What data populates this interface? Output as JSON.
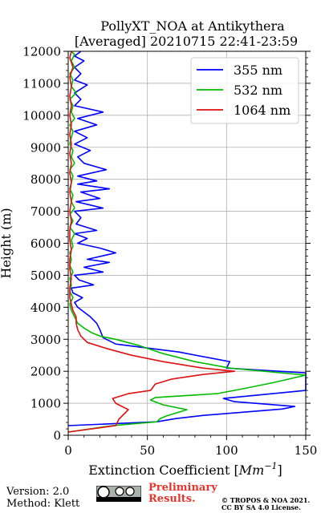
{
  "chart_data": {
    "type": "line",
    "title": "PollyXT_NOA at Antikythera",
    "subtitle": "[Averaged] 20210715 22:41-23:59",
    "xlabel": "Extinction Coefficient [",
    "xlabel_unit": "Mm",
    "xlabel_exp": "−1",
    "xlabel_end": "]",
    "ylabel": "Height (m)",
    "xlim": [
      0,
      150
    ],
    "ylim": [
      0,
      12000
    ],
    "x_ticks": [
      0,
      50,
      100,
      150
    ],
    "y_ticks": [
      0,
      1000,
      2000,
      3000,
      4000,
      5000,
      6000,
      7000,
      8000,
      9000,
      10000,
      11000,
      12000
    ],
    "grid": true,
    "legend_position": "top-right",
    "series": [
      {
        "name": "355 nm",
        "color": "#0000ff",
        "points": [
          [
            0,
            300
          ],
          [
            56,
            420
          ],
          [
            68,
            520
          ],
          [
            85,
            620
          ],
          [
            110,
            720
          ],
          [
            135,
            820
          ],
          [
            143,
            900
          ],
          [
            105,
            1050
          ],
          [
            98,
            1150
          ],
          [
            150,
            1400
          ],
          [
            150,
            1950
          ],
          [
            100,
            2100
          ],
          [
            102,
            2300
          ],
          [
            70,
            2600
          ],
          [
            30,
            2850
          ],
          [
            22,
            3050
          ],
          [
            20,
            3300
          ],
          [
            18,
            3500
          ],
          [
            14,
            3700
          ],
          [
            10,
            3850
          ],
          [
            6,
            4000
          ],
          [
            4,
            4150
          ],
          [
            9,
            4300
          ],
          [
            3,
            4450
          ],
          [
            2,
            4600
          ],
          [
            16,
            4700
          ],
          [
            7,
            4850
          ],
          [
            4,
            5000
          ],
          [
            22,
            5100
          ],
          [
            10,
            5250
          ],
          [
            26,
            5400
          ],
          [
            12,
            5500
          ],
          [
            30,
            5700
          ],
          [
            20,
            5850
          ],
          [
            6,
            6000
          ],
          [
            12,
            6150
          ],
          [
            4,
            6300
          ],
          [
            18,
            6400
          ],
          [
            5,
            6600
          ],
          [
            8,
            6800
          ],
          [
            4,
            7000
          ],
          [
            22,
            7100
          ],
          [
            5,
            7300
          ],
          [
            20,
            7400
          ],
          [
            8,
            7600
          ],
          [
            26,
            7700
          ],
          [
            6,
            7850
          ],
          [
            18,
            7950
          ],
          [
            6,
            8100
          ],
          [
            24,
            8300
          ],
          [
            10,
            8500
          ],
          [
            6,
            8700
          ],
          [
            14,
            8900
          ],
          [
            4,
            9100
          ],
          [
            12,
            9300
          ],
          [
            4,
            9500
          ],
          [
            18,
            9700
          ],
          [
            6,
            9900
          ],
          [
            22,
            10100
          ],
          [
            4,
            10300
          ],
          [
            8,
            10500
          ],
          [
            4,
            10700
          ],
          [
            12,
            10950
          ],
          [
            4,
            11100
          ],
          [
            8,
            11300
          ],
          [
            4,
            11500
          ],
          [
            10,
            11700
          ],
          [
            4,
            11850
          ],
          [
            8,
            12000
          ]
        ]
      },
      {
        "name": "532 nm",
        "color": "#00bb00",
        "points": [
          [
            0,
            100
          ],
          [
            28,
            300
          ],
          [
            56,
            420
          ],
          [
            58,
            520
          ],
          [
            62,
            600
          ],
          [
            75,
            800
          ],
          [
            60,
            950
          ],
          [
            52,
            1100
          ],
          [
            55,
            1180
          ],
          [
            94,
            1300
          ],
          [
            110,
            1450
          ],
          [
            130,
            1650
          ],
          [
            150,
            1880
          ],
          [
            102,
            2100
          ],
          [
            80,
            2300
          ],
          [
            60,
            2550
          ],
          [
            45,
            2800
          ],
          [
            30,
            3000
          ],
          [
            20,
            3100
          ],
          [
            15,
            3200
          ],
          [
            10,
            3350
          ],
          [
            6,
            3500
          ],
          [
            4,
            3700
          ],
          [
            2,
            3900
          ],
          [
            1,
            4100
          ],
          [
            3,
            4300
          ],
          [
            1,
            4500
          ],
          [
            2,
            4700
          ],
          [
            1,
            4900
          ],
          [
            3,
            5100
          ],
          [
            1,
            5300
          ],
          [
            2,
            5500
          ],
          [
            1,
            5700
          ],
          [
            3,
            5900
          ],
          [
            2,
            6100
          ],
          [
            4,
            6300
          ],
          [
            1,
            6500
          ],
          [
            3,
            6700
          ],
          [
            1,
            6900
          ],
          [
            4,
            7100
          ],
          [
            2,
            7300
          ],
          [
            3,
            7500
          ],
          [
            1,
            7700
          ],
          [
            2,
            7900
          ],
          [
            3,
            8100
          ],
          [
            1,
            8300
          ],
          [
            4,
            8500
          ],
          [
            2,
            8700
          ],
          [
            3,
            8900
          ],
          [
            1,
            9100
          ],
          [
            2,
            9300
          ],
          [
            3,
            9500
          ],
          [
            1,
            9700
          ],
          [
            4,
            9900
          ],
          [
            2,
            10100
          ],
          [
            3,
            10300
          ],
          [
            1,
            10500
          ],
          [
            5,
            10700
          ],
          [
            2,
            10900
          ],
          [
            3,
            11100
          ],
          [
            1,
            11300
          ],
          [
            4,
            11500
          ],
          [
            2,
            11700
          ],
          [
            4,
            11900
          ],
          [
            2,
            12000
          ]
        ]
      },
      {
        "name": "1064 nm",
        "color": "#dd1111",
        "points": [
          [
            0,
            100
          ],
          [
            30,
            300
          ],
          [
            32,
            500
          ],
          [
            38,
            800
          ],
          [
            30,
            1000
          ],
          [
            28,
            1150
          ],
          [
            38,
            1300
          ],
          [
            52,
            1400
          ],
          [
            55,
            1600
          ],
          [
            65,
            1750
          ],
          [
            85,
            1900
          ],
          [
            105,
            2000
          ],
          [
            85,
            2100
          ],
          [
            60,
            2300
          ],
          [
            40,
            2500
          ],
          [
            25,
            2700
          ],
          [
            12,
            2900
          ],
          [
            8,
            3100
          ],
          [
            6,
            3300
          ],
          [
            5,
            3500
          ],
          [
            5,
            3700
          ],
          [
            3,
            3900
          ],
          [
            2,
            4100
          ],
          [
            1,
            4300
          ],
          [
            1,
            4600
          ],
          [
            2,
            4900
          ],
          [
            1,
            5200
          ],
          [
            1,
            5500
          ],
          [
            2,
            5800
          ],
          [
            1,
            6100
          ],
          [
            1,
            6400
          ],
          [
            2,
            6700
          ],
          [
            1,
            7000
          ],
          [
            2,
            7300
          ],
          [
            1,
            7600
          ],
          [
            2,
            7900
          ],
          [
            1,
            8200
          ],
          [
            2,
            8500
          ],
          [
            1,
            8800
          ],
          [
            2,
            9100
          ],
          [
            1,
            9400
          ],
          [
            2,
            9700
          ],
          [
            1,
            10000
          ],
          [
            2,
            10300
          ],
          [
            1,
            10600
          ],
          [
            2,
            10900
          ],
          [
            1,
            11200
          ],
          [
            3,
            11500
          ],
          [
            1,
            11800
          ],
          [
            2,
            12000
          ]
        ]
      }
    ]
  },
  "footer": {
    "version": "Version: 2.0",
    "method": "Method: Klett",
    "license_badge": "cc-by-sa-badge",
    "preliminary_line1": "Preliminary",
    "preliminary_line2": "Results.",
    "copyright_line1": "© TROPOS & NOA 2021.",
    "copyright_line2": "CC BY SA 4.0 License."
  }
}
